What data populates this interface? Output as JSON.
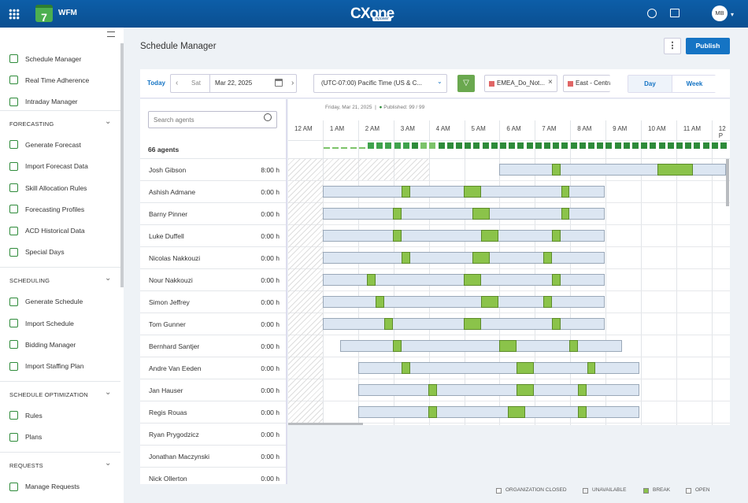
{
  "header": {
    "app": "WFM",
    "app_icon": "7",
    "logo": "CXone",
    "logo_sub": "mpower",
    "user": "MB"
  },
  "sidebar": {
    "items": [
      "Schedule Manager",
      "Real Time Adherence",
      "Intraday Manager"
    ],
    "sections": [
      {
        "title": "FORECASTING",
        "items": [
          "Generate Forecast",
          "Import Forecast Data",
          "Skill Allocation Rules",
          "Forecasting Profiles",
          "ACD Historical Data",
          "Special Days"
        ]
      },
      {
        "title": "SCHEDULING",
        "items": [
          "Generate Schedule",
          "Import Schedule",
          "Bidding Manager",
          "Import Staffing Plan"
        ]
      },
      {
        "title": "SCHEDULE OPTIMIZATION",
        "items": [
          "Rules",
          "Plans"
        ]
      },
      {
        "title": "REQUESTS",
        "items": [
          "Manage Requests"
        ]
      }
    ]
  },
  "page": {
    "title": "Schedule Manager",
    "publish": "Publish"
  },
  "toolbar": {
    "today": "Today",
    "day_short": "Sat",
    "date": "Mar 22, 2025",
    "timezone": "(UTC-07:00) Pacific Time (US & C...",
    "filters": [
      "EMEA_Do_Not...",
      "East - Centra"
    ],
    "views": [
      "Day",
      "Week"
    ]
  },
  "agents": {
    "search_placeholder": "Search agents",
    "count": "66 agents",
    "rows": [
      {
        "name": "Josh Gibson",
        "hours": "8:00 h"
      },
      {
        "name": "Ashish Admane",
        "hours": "0:00 h"
      },
      {
        "name": "Barny Pinner",
        "hours": "0:00 h"
      },
      {
        "name": "Luke Duffell",
        "hours": "0:00 h"
      },
      {
        "name": "Nicolas Nakkouzi",
        "hours": "0:00 h"
      },
      {
        "name": "Nour Nakkouzi",
        "hours": "0:00 h"
      },
      {
        "name": "Simon Jeffrey",
        "hours": "0:00 h"
      },
      {
        "name": "Tom Gunner",
        "hours": "0:00 h"
      },
      {
        "name": "Bernhard Santjer",
        "hours": "0:00 h"
      },
      {
        "name": "Andre Van Eeden",
        "hours": "0:00 h"
      },
      {
        "name": "Jan Hauser",
        "hours": "0:00 h"
      },
      {
        "name": "Regis Rouas",
        "hours": "0:00 h"
      },
      {
        "name": "Ryan Prygodzicz",
        "hours": "0:00 h"
      },
      {
        "name": "Jonathan Maczynski",
        "hours": "0:00 h"
      },
      {
        "name": "Nick Ollerton",
        "hours": "0:00 h"
      }
    ]
  },
  "timeline": {
    "date": "Friday, Mar 21, 2025",
    "separator": "|",
    "published": "Published: 99 / 99",
    "hours": [
      "12 AM",
      "1 AM",
      "2 AM",
      "3 AM",
      "4 AM",
      "5 AM",
      "6 AM",
      "7 AM",
      "8 AM",
      "9 AM",
      "10 AM",
      "11 AM",
      "12 P"
    ]
  },
  "legend": [
    "ORGANIZATION CLOSED",
    "UNAVAILABLE",
    "BREAK",
    "OPEN"
  ]
}
